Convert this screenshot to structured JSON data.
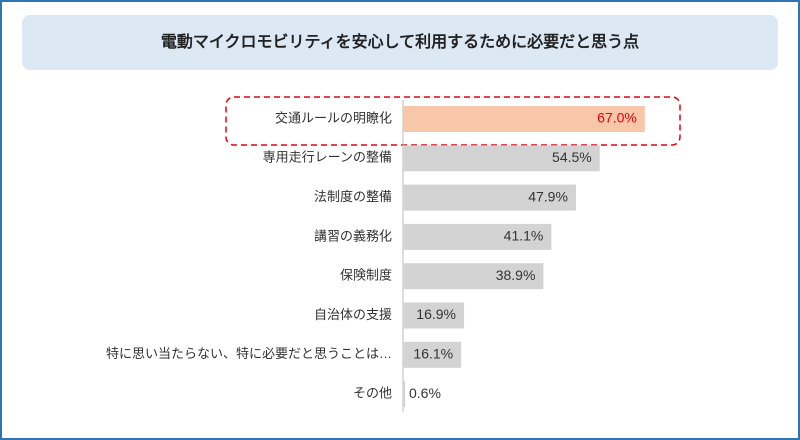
{
  "chart_data": {
    "type": "hbar",
    "title": "電動マイクロモビリティを安心して利用するために必要だと思う点",
    "categories": [
      "交通ルールの明瞭化",
      "専用走行レーンの整備",
      "法制度の整備",
      "講習の義務化",
      "保険制度",
      "自治体の支援",
      "特に思い当たらない、特に必要だと思うことは…",
      "その他"
    ],
    "values": [
      67.0,
      54.5,
      47.9,
      41.1,
      38.9,
      16.9,
      16.1,
      0.6
    ],
    "value_labels": [
      "67.0%",
      "54.5%",
      "47.9%",
      "41.1%",
      "38.9%",
      "16.9%",
      "16.1%",
      "0.6%"
    ],
    "colors": [
      "#f8c6a8",
      "#d3d3d3",
      "#d3d3d3",
      "#d3d3d3",
      "#d3d3d3",
      "#d3d3d3",
      "#d3d3d3",
      "#d3d3d3"
    ],
    "value_label_colors": [
      "#e60012",
      "#333333",
      "#333333",
      "#333333",
      "#333333",
      "#333333",
      "#333333",
      "#333333"
    ]
  }
}
